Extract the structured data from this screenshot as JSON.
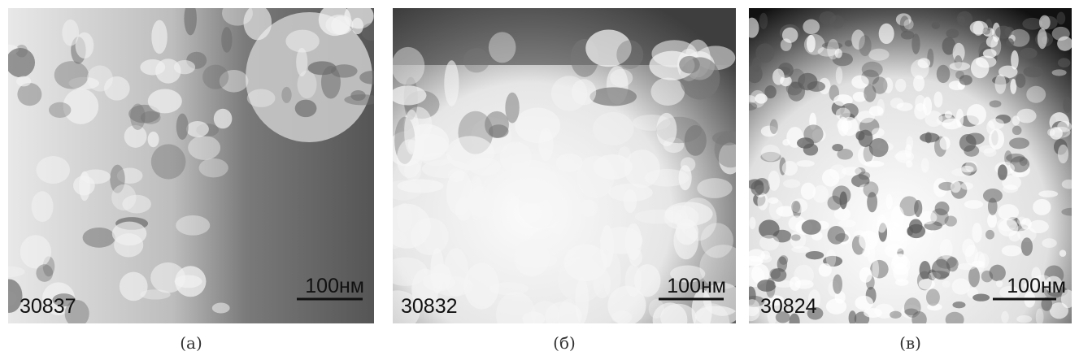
{
  "panels": [
    {
      "sample": "30837",
      "scale": "100нм",
      "caption": "(а)"
    },
    {
      "sample": "30832",
      "scale": "100нм",
      "caption": "(б)"
    },
    {
      "sample": "30824",
      "scale": "100нм",
      "caption": "(в)"
    }
  ]
}
